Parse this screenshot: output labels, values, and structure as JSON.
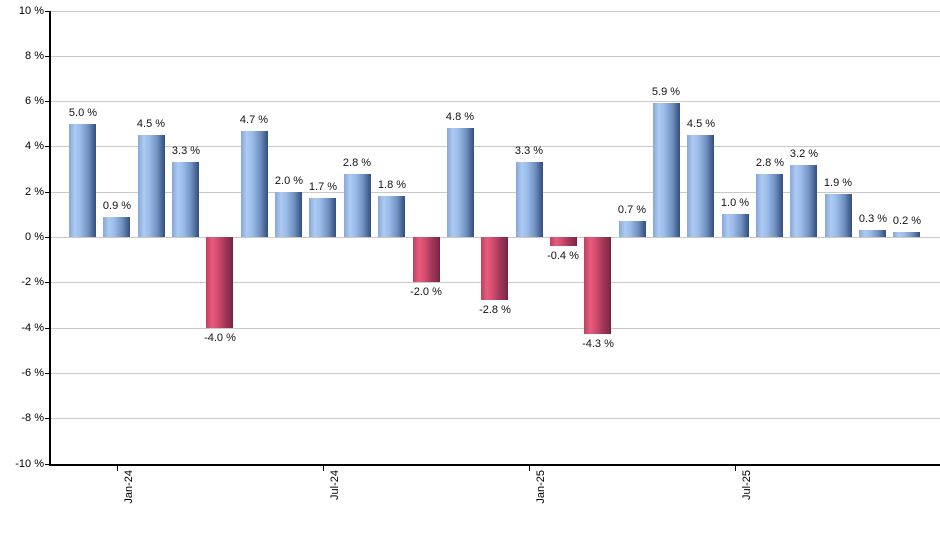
{
  "chart_data": {
    "type": "bar",
    "title": "",
    "xlabel": "",
    "ylabel": "",
    "ylim": [
      -10,
      10
    ],
    "grid": true,
    "legend": "none",
    "value_suffix": " %",
    "colors": {
      "positive_bar": "#7da2d8",
      "positive_bar_dark": "#35507c",
      "negative_bar": "#d64e70",
      "negative_bar_dark": "#6e2040",
      "gridline": "#c9c9c9",
      "axis": "#000000",
      "label_text": "#101018"
    },
    "bars": [
      {
        "value": 5.0,
        "label": "5.0 %"
      },
      {
        "value": 0.9,
        "label": "0.9 %"
      },
      {
        "value": 4.5,
        "label": "4.5 %"
      },
      {
        "value": 3.3,
        "label": "3.3 %"
      },
      {
        "value": -4.0,
        "label": "-4.0 %"
      },
      {
        "value": 4.7,
        "label": "4.7 %"
      },
      {
        "value": 2.0,
        "label": "2.0 %"
      },
      {
        "value": 1.7,
        "label": "1.7 %"
      },
      {
        "value": 2.8,
        "label": "2.8 %"
      },
      {
        "value": 1.8,
        "label": "1.8 %"
      },
      {
        "value": -2.0,
        "label": "-2.0 %"
      },
      {
        "value": 4.8,
        "label": "4.8 %"
      },
      {
        "value": -2.8,
        "label": "-2.8 %"
      },
      {
        "value": 3.3,
        "label": "3.3 %"
      },
      {
        "value": -0.4,
        "label": "-0.4 %"
      },
      {
        "value": -4.3,
        "label": "-4.3 %"
      },
      {
        "value": 0.7,
        "label": "0.7 %"
      },
      {
        "value": 5.9,
        "label": "5.9 %"
      },
      {
        "value": 4.5,
        "label": "4.5 %"
      },
      {
        "value": 1.0,
        "label": "1.0 %"
      },
      {
        "value": 2.8,
        "label": "2.8 %"
      },
      {
        "value": 3.2,
        "label": "3.2 %"
      },
      {
        "value": 1.9,
        "label": "1.9 %"
      },
      {
        "value": 0.3,
        "label": "0.3 %"
      },
      {
        "value": 0.2,
        "label": "0.2 %"
      }
    ],
    "yticks": [
      {
        "value": 10,
        "label": "10 %"
      },
      {
        "value": 8,
        "label": "8 %"
      },
      {
        "value": 6,
        "label": "6 %"
      },
      {
        "value": 4,
        "label": "4 %"
      },
      {
        "value": 2,
        "label": "2 %"
      },
      {
        "value": 0,
        "label": "0 %"
      },
      {
        "value": -2,
        "label": "-2 %"
      },
      {
        "value": -4,
        "label": "-4 %"
      },
      {
        "value": -6,
        "label": "-6 %"
      },
      {
        "value": -8,
        "label": "-8 %"
      },
      {
        "value": -10,
        "label": "-10 %"
      }
    ],
    "xticks": [
      {
        "bar_index": 1,
        "label": "Jan-24"
      },
      {
        "bar_index": 7,
        "label": "Jul-24"
      },
      {
        "bar_index": 13,
        "label": "Jan-25"
      },
      {
        "bar_index": 19,
        "label": "Jul-25"
      }
    ]
  }
}
